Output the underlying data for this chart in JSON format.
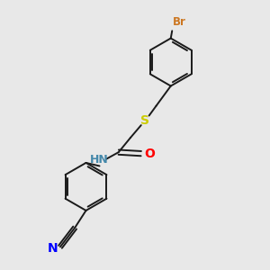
{
  "background_color": "#e8e8e8",
  "bond_color": "#1a1a1a",
  "atom_colors": {
    "Br": "#cc7722",
    "S": "#cccc00",
    "O": "#ff0000",
    "N_amide": "#4488aa",
    "N_cyano": "#0000ff",
    "C_triple": "#1a1a1a"
  },
  "figsize": [
    3.0,
    3.0
  ],
  "dpi": 100
}
